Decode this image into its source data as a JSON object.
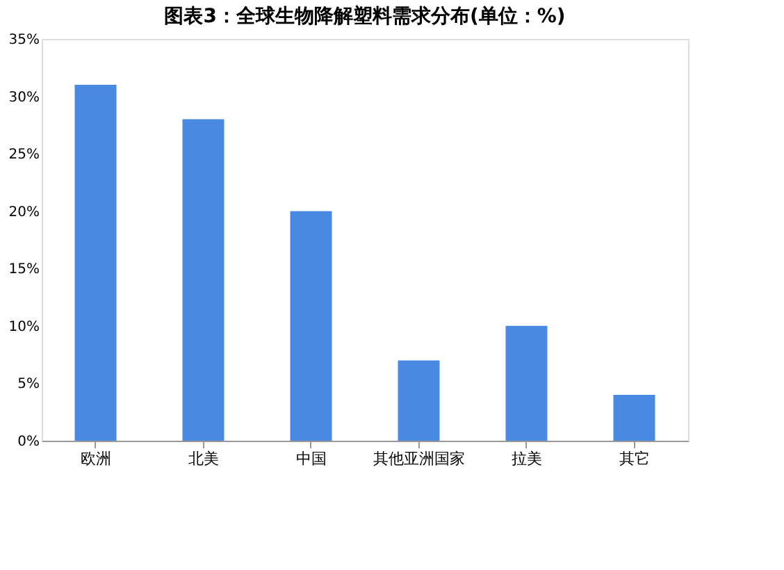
{
  "chart_data": {
    "type": "bar",
    "title": "图表3：全球生物降解塑料需求分布(单位：%)",
    "categories": [
      "欧洲",
      "北美",
      "中国",
      "其他亚洲国家",
      "拉美",
      "其它"
    ],
    "values": [
      31,
      28,
      20,
      7,
      10,
      4
    ],
    "color": "#4a89e2",
    "ylim": [
      0,
      35
    ],
    "yticks": [
      {
        "value": 0,
        "label": "0%"
      },
      {
        "value": 5,
        "label": "5%"
      },
      {
        "value": 10,
        "label": "10%"
      },
      {
        "value": 15,
        "label": "15%"
      },
      {
        "value": 20,
        "label": "20%"
      },
      {
        "value": 25,
        "label": "25%"
      },
      {
        "value": 30,
        "label": "30%"
      },
      {
        "value": 35,
        "label": "35%"
      }
    ],
    "grid": false
  }
}
